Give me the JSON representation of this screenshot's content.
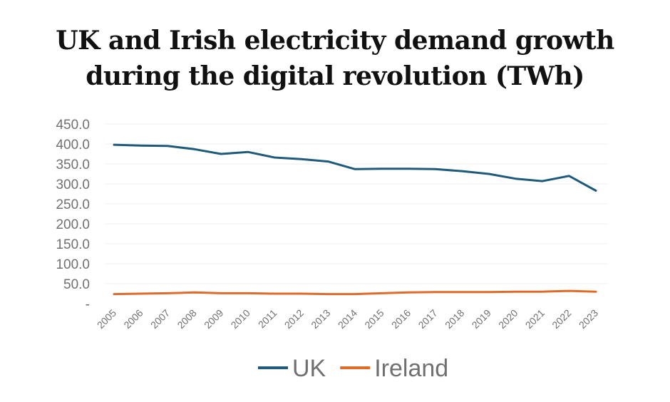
{
  "chart_data": {
    "type": "line",
    "title_lines": [
      "UK and Irish electricity demand growth",
      "during the digital revolution (TWh)"
    ],
    "x": [
      "2005",
      "2006",
      "2007",
      "2008",
      "2009",
      "2010",
      "2011",
      "2012",
      "2013",
      "2014",
      "2015",
      "2016",
      "2017",
      "2018",
      "2019",
      "2020",
      "2021",
      "2022",
      "2023"
    ],
    "y_tick_labels": [
      "-",
      "50.0",
      "100.0",
      "150.0",
      "200.0",
      "250.0",
      "300.0",
      "350.0",
      "400.0",
      "450.0"
    ],
    "ylim": [
      0,
      450
    ],
    "grid": true,
    "legend_position": "bottom",
    "series": [
      {
        "name": "UK",
        "color": "#1f5a7a",
        "values": [
          398,
          396,
          395,
          387,
          375,
          380,
          366,
          362,
          356,
          337,
          338,
          338,
          337,
          332,
          325,
          313,
          307,
          320,
          283
        ]
      },
      {
        "name": "Ireland",
        "color": "#e06a2a",
        "values": [
          24,
          25,
          26,
          28,
          26,
          26,
          25,
          25,
          24,
          24,
          26,
          28,
          29,
          29,
          29,
          30,
          30,
          32,
          30
        ]
      }
    ]
  }
}
